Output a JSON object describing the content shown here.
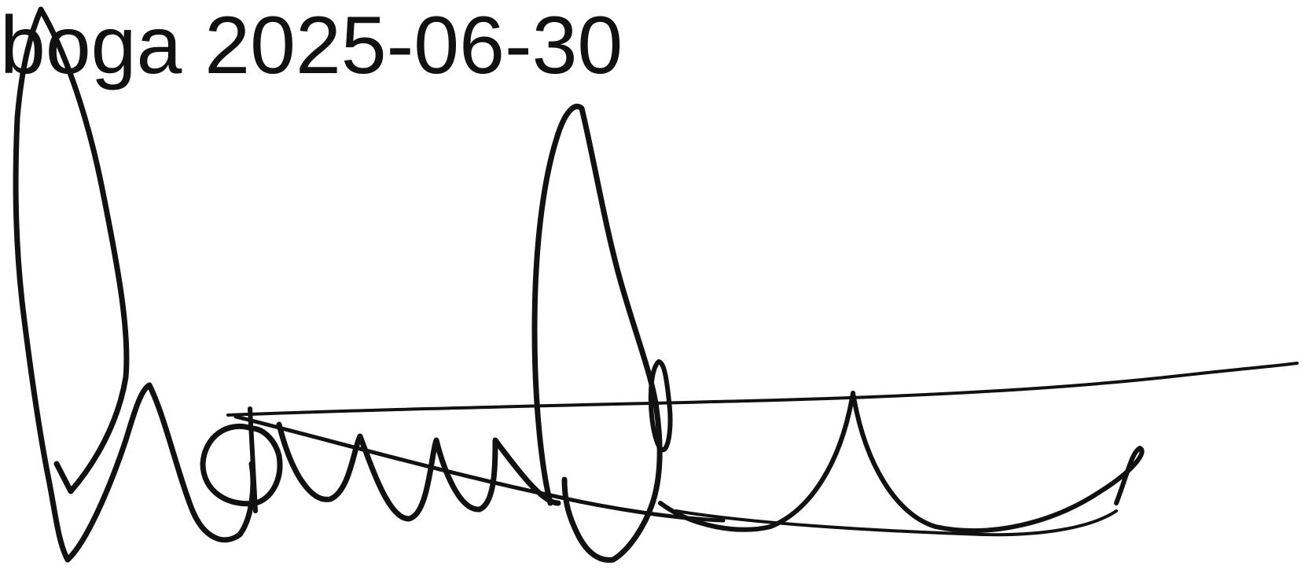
{
  "caption": {
    "name": "boga",
    "date": "2025-06-30",
    "full": "boga 2025-06-30"
  },
  "signature": {
    "icon": "handwritten-signature",
    "ink_color": "#111111"
  }
}
